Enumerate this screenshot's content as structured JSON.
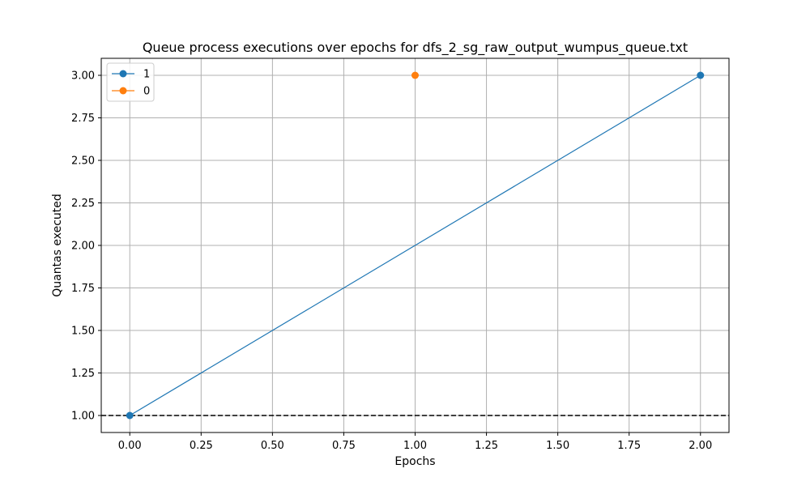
{
  "chart_data": {
    "type": "line",
    "title": "Queue process executions over epochs for dfs_2_sg_raw_output_wumpus_queue.txt",
    "xlabel": "Epochs",
    "ylabel": "Quantas executed",
    "xlim": [
      -0.1,
      2.1
    ],
    "ylim": [
      0.9,
      3.1
    ],
    "grid": true,
    "legend_placement": "top-left",
    "x_ticks": [
      "0.00",
      "0.25",
      "0.50",
      "0.75",
      "1.00",
      "1.25",
      "1.50",
      "1.75",
      "2.00"
    ],
    "y_ticks": [
      "1.00",
      "1.25",
      "1.50",
      "1.75",
      "2.00",
      "2.25",
      "2.50",
      "2.75",
      "3.00"
    ],
    "x_tick_values": [
      0,
      0.25,
      0.5,
      0.75,
      1.0,
      1.25,
      1.5,
      1.75,
      2.0
    ],
    "y_tick_values": [
      1.0,
      1.25,
      1.5,
      1.75,
      2.0,
      2.25,
      2.5,
      2.75,
      3.0
    ],
    "series": [
      {
        "name": "1",
        "color": "#1f77b4",
        "x": [
          0,
          2
        ],
        "y": [
          1,
          3
        ]
      },
      {
        "name": "0",
        "color": "#ff7f0e",
        "x": [
          1
        ],
        "y": [
          3
        ]
      }
    ],
    "reference_lines": [
      {
        "orientation": "horizontal",
        "y": 1.0,
        "style": "dashed",
        "color": "#000000"
      }
    ]
  }
}
